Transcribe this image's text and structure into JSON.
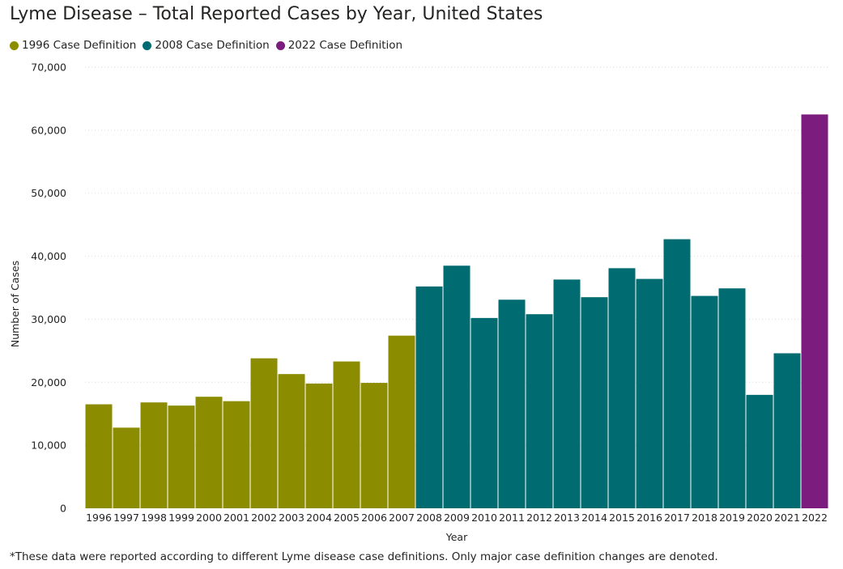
{
  "chart_data": {
    "type": "bar",
    "title": "Lyme Disease – Total Reported Cases by Year, United States",
    "xlabel": "Year",
    "ylabel": "Number of Cases",
    "ylim": [
      0,
      70000
    ],
    "yticks": [
      0,
      10000,
      20000,
      30000,
      40000,
      50000,
      60000,
      70000
    ],
    "ytick_labels": [
      "0",
      "10,000",
      "20,000",
      "30,000",
      "40,000",
      "50,000",
      "60,000",
      "70,000"
    ],
    "grid": true,
    "legend_position": "top-left",
    "series": [
      {
        "name": "1996 Case Definition",
        "color": "#8C8C00"
      },
      {
        "name": "2008 Case Definition",
        "color": "#006B70"
      },
      {
        "name": "2022 Case Definition",
        "color": "#7B1C7E"
      }
    ],
    "categories": [
      "1996",
      "1997",
      "1998",
      "1999",
      "2000",
      "2001",
      "2002",
      "2003",
      "2004",
      "2005",
      "2006",
      "2007",
      "2008",
      "2009",
      "2010",
      "2011",
      "2012",
      "2013",
      "2014",
      "2015",
      "2016",
      "2017",
      "2018",
      "2019",
      "2020",
      "2021",
      "2022"
    ],
    "values": [
      16500,
      12800,
      16800,
      16300,
      17700,
      17000,
      23800,
      21300,
      19800,
      23300,
      19900,
      27400,
      35200,
      38500,
      30200,
      33100,
      30800,
      36300,
      33500,
      38100,
      36400,
      42700,
      33700,
      34900,
      18000,
      24600,
      62500
    ],
    "series_index": [
      0,
      0,
      0,
      0,
      0,
      0,
      0,
      0,
      0,
      0,
      0,
      0,
      1,
      1,
      1,
      1,
      1,
      1,
      1,
      1,
      1,
      1,
      1,
      1,
      1,
      1,
      2
    ]
  },
  "footnote": "*These data were reported according to different Lyme disease case definitions. Only major case definition changes are denoted."
}
